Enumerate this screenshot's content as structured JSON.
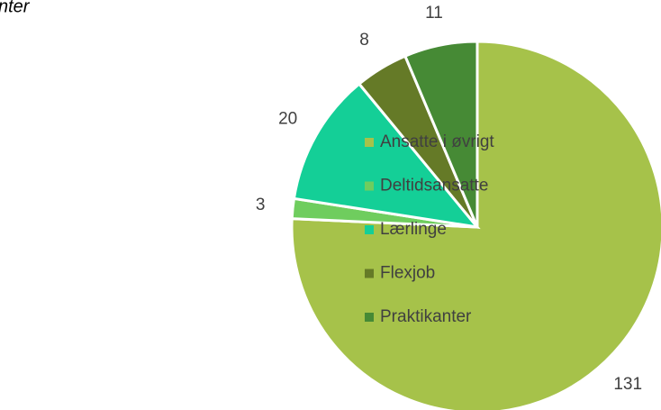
{
  "chart_data": {
    "type": "pie",
    "title": "nter",
    "categories": [
      "Ansatte i øvrigt",
      "Deltidsansatte",
      "Lærlinge",
      "Flexjob",
      "Praktikanter"
    ],
    "values": [
      131,
      3,
      20,
      8,
      11
    ],
    "colors": [
      "#a6c24a",
      "#6fcd5e",
      "#14cf97",
      "#657a27",
      "#468a35"
    ],
    "legend": "left"
  }
}
